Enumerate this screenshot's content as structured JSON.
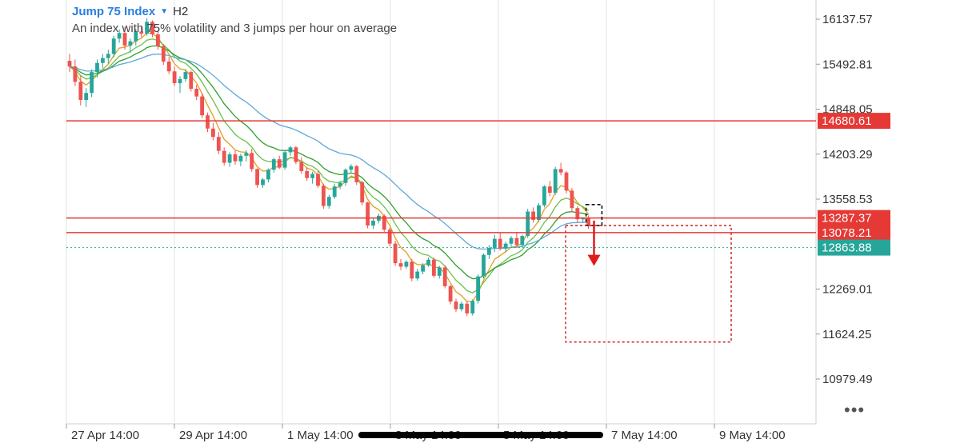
{
  "header": {
    "symbol": "Jump 75 Index",
    "timeframe": "H2",
    "description": "An index with 75% volatility and 3 jumps per hour on average",
    "dropdown_icon": "caret-down-icon"
  },
  "more_label": "•••",
  "colors": {
    "bull": "#26a69a",
    "bear": "#ef5350",
    "ma_green": "#2ca02c",
    "ma_lightgreen": "#66c24a",
    "ma_orange": "#e0a020",
    "ma_blue": "#5fa8d8",
    "level": "#e53935",
    "current": "#26a69a",
    "axis_text": "#333333",
    "grid": "#e3e3e3"
  },
  "chart_data": {
    "type": "candlestick",
    "price_axis": [
      "16137.57",
      "15492.81",
      "14848.05",
      "14203.29",
      "13558.53",
      "12269.01",
      "11624.25",
      "10979.49"
    ],
    "price_axis_values": [
      16137.57,
      15492.81,
      14848.05,
      14203.29,
      13558.53,
      12269.01,
      11624.25,
      10979.49
    ],
    "time_axis": [
      "27 Apr 14:00",
      "29 Apr 14:00",
      "1 May 14:00",
      "3 May 14:00",
      "5 May 14:00",
      "7 May 14:00",
      "9 May 14:00"
    ],
    "levels": [
      {
        "value": 14680.61,
        "label": "14680.61",
        "style": "solid"
      },
      {
        "value": 13287.37,
        "label": "13287.37",
        "style": "solid"
      },
      {
        "value": 13078.21,
        "label": "13078.21",
        "style": "solid"
      }
    ],
    "current_price": {
      "value": 12863.88,
      "label": "12863.88"
    },
    "ohlc": [
      [
        15540,
        15640,
        15380,
        15460
      ],
      [
        15460,
        15560,
        15180,
        15240
      ],
      [
        15240,
        15330,
        14900,
        14980
      ],
      [
        14980,
        15150,
        14880,
        15080
      ],
      [
        15080,
        15420,
        15020,
        15380
      ],
      [
        15380,
        15560,
        15300,
        15510
      ],
      [
        15510,
        15640,
        15440,
        15580
      ],
      [
        15580,
        15700,
        15500,
        15640
      ],
      [
        15640,
        15900,
        15590,
        15860
      ],
      [
        15860,
        15990,
        15800,
        15940
      ],
      [
        15940,
        16020,
        15700,
        15760
      ],
      [
        15760,
        15860,
        15660,
        15820
      ],
      [
        15820,
        16000,
        15760,
        15960
      ],
      [
        15960,
        16030,
        15880,
        15930
      ],
      [
        15930,
        16150,
        15900,
        16100
      ],
      [
        16100,
        16120,
        15880,
        15920
      ],
      [
        15920,
        15980,
        15700,
        15750
      ],
      [
        15750,
        15780,
        15480,
        15530
      ],
      [
        15530,
        15600,
        15350,
        15390
      ],
      [
        15390,
        15460,
        15180,
        15220
      ],
      [
        15220,
        15320,
        15080,
        15280
      ],
      [
        15280,
        15420,
        15240,
        15380
      ],
      [
        15380,
        15400,
        15100,
        15140
      ],
      [
        15140,
        15200,
        14980,
        15030
      ],
      [
        15030,
        15080,
        14720,
        14760
      ],
      [
        14760,
        14800,
        14520,
        14570
      ],
      [
        14570,
        14650,
        14400,
        14450
      ],
      [
        14450,
        14520,
        14200,
        14250
      ],
      [
        14250,
        14300,
        14040,
        14080
      ],
      [
        14080,
        14230,
        14020,
        14200
      ],
      [
        14200,
        14260,
        14050,
        14100
      ],
      [
        14100,
        14210,
        14030,
        14180
      ],
      [
        14180,
        14260,
        14100,
        14220
      ],
      [
        14220,
        14280,
        13950,
        13990
      ],
      [
        13990,
        14000,
        13720,
        13760
      ],
      [
        13760,
        13860,
        13720,
        13840
      ],
      [
        13840,
        14000,
        13800,
        13980
      ],
      [
        13980,
        14150,
        13940,
        14130
      ],
      [
        14130,
        14180,
        13990,
        14010
      ],
      [
        14010,
        14260,
        13980,
        14230
      ],
      [
        14230,
        14320,
        14180,
        14300
      ],
      [
        14300,
        14320,
        14060,
        14090
      ],
      [
        14090,
        14160,
        13920,
        13960
      ],
      [
        13960,
        14010,
        13820,
        13860
      ],
      [
        13860,
        13950,
        13780,
        13920
      ],
      [
        13920,
        13960,
        13720,
        13750
      ],
      [
        13750,
        13780,
        13420,
        13460
      ],
      [
        13460,
        13620,
        13420,
        13590
      ],
      [
        13590,
        13780,
        13560,
        13740
      ],
      [
        13740,
        13820,
        13700,
        13790
      ],
      [
        13790,
        14000,
        13750,
        13980
      ],
      [
        13980,
        14060,
        13940,
        14030
      ],
      [
        14030,
        14050,
        13760,
        13800
      ],
      [
        13800,
        13820,
        13470,
        13510
      ],
      [
        13510,
        13520,
        13140,
        13180
      ],
      [
        13180,
        13280,
        13130,
        13250
      ],
      [
        13250,
        13350,
        13210,
        13320
      ],
      [
        13320,
        13340,
        13090,
        13120
      ],
      [
        13120,
        13150,
        12880,
        12920
      ],
      [
        12920,
        12960,
        12600,
        12640
      ],
      [
        12640,
        12700,
        12540,
        12590
      ],
      [
        12590,
        12680,
        12560,
        12660
      ],
      [
        12660,
        12700,
        12380,
        12420
      ],
      [
        12420,
        12560,
        12390,
        12520
      ],
      [
        12520,
        12640,
        12480,
        12610
      ],
      [
        12610,
        12720,
        12590,
        12690
      ],
      [
        12690,
        12720,
        12430,
        12460
      ],
      [
        12460,
        12600,
        12420,
        12580
      ],
      [
        12580,
        12610,
        12280,
        12310
      ],
      [
        12310,
        12330,
        12050,
        12090
      ],
      [
        12090,
        12130,
        11940,
        11980
      ],
      [
        11980,
        12090,
        11950,
        12060
      ],
      [
        12060,
        12100,
        11880,
        11920
      ],
      [
        11920,
        12120,
        11890,
        12100
      ],
      [
        12100,
        12480,
        12060,
        12450
      ],
      [
        12450,
        12780,
        12420,
        12760
      ],
      [
        12760,
        12900,
        12700,
        12860
      ],
      [
        12860,
        13050,
        12800,
        12990
      ],
      [
        12990,
        13080,
        12820,
        12850
      ],
      [
        12850,
        12950,
        12800,
        12920
      ],
      [
        12920,
        13030,
        12880,
        13000
      ],
      [
        13000,
        13080,
        12880,
        12900
      ],
      [
        12900,
        13050,
        12870,
        13030
      ],
      [
        13030,
        13420,
        13000,
        13380
      ],
      [
        13380,
        13440,
        13220,
        13260
      ],
      [
        13260,
        13500,
        13230,
        13470
      ],
      [
        13470,
        13760,
        13440,
        13740
      ],
      [
        13740,
        13820,
        13600,
        13650
      ],
      [
        13650,
        14020,
        13620,
        13990
      ],
      [
        13990,
        14080,
        13900,
        13940
      ],
      [
        13940,
        13960,
        13640,
        13680
      ],
      [
        13680,
        13720,
        13380,
        13430
      ],
      [
        13430,
        13460,
        13220,
        13270
      ],
      [
        13270,
        13300,
        13220,
        13290
      ],
      [
        13290,
        13320,
        13130,
        13170
      ]
    ],
    "ma_spans": [
      5,
      9,
      15,
      30
    ],
    "annotations": {
      "entry_box": {
        "start_candle": 94,
        "end_candle": 96,
        "high": 13480,
        "low": 13180,
        "style": "dashed-black"
      },
      "arrow": {
        "candle": 95,
        "from": 13250,
        "to": 12600,
        "direction": "down"
      },
      "target_box": {
        "start_candle": 90,
        "end_candle": 120,
        "high": 13180,
        "low": 11510,
        "style": "dotted-red"
      }
    }
  }
}
